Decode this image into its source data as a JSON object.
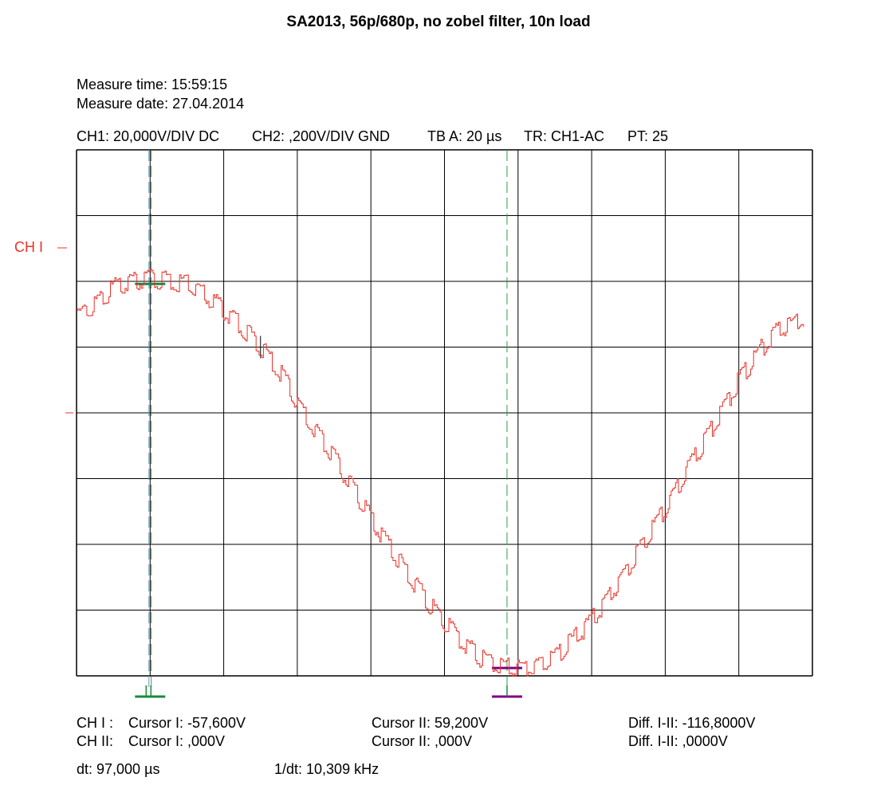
{
  "title": "SA2013, 56p/680p, no zobel filter, 10n load",
  "measure_time": "Measure time: 15:59:15",
  "measure_date": "Measure date: 27.04.2014",
  "settings": {
    "ch1": "CH1: 20,000V/DIV DC",
    "ch2": "CH2: ,200V/DIV GND",
    "timebase": "TB A: 20 µs",
    "trigger": "TR: CH1-AC",
    "pt": "PT: 25"
  },
  "ch1_marker": "CH I",
  "footer": {
    "ch1_label": "CH I :",
    "ch1_cursor1": "Cursor I: -57,600V",
    "ch1_cursor2": "Cursor II: 59,200V",
    "ch1_diff": "Diff. I-II: -116,8000V",
    "ch2_label": "CH II:",
    "ch2_cursor1": "Cursor I: ,000V",
    "ch2_cursor2": "Cursor II: ,000V",
    "ch2_diff": "Diff. I-II: ,0000V",
    "dt": "dt: 97,000 µs",
    "inv_dt": "1/dt: 10,309 kHz"
  },
  "colors": {
    "trace": "#e8332a",
    "grid": "#000000",
    "cursor1": "#1a8a3a",
    "cursor2": "#800080",
    "cursor_v1": "#4f9fb8",
    "cursor_v2": "#2e9e3e"
  },
  "chart_data": {
    "type": "line",
    "grid": true,
    "xlim": [
      0,
      200
    ],
    "ylim": [
      -60,
      100
    ],
    "x_units": "µs",
    "y_units": "V",
    "series": [
      {
        "x": [
          0,
          5,
          10,
          15,
          20,
          25,
          30,
          35,
          40,
          45,
          50,
          55,
          60,
          65,
          70,
          75,
          80,
          85,
          90,
          95,
          100,
          105,
          110,
          115,
          120,
          125,
          130,
          135,
          140,
          145,
          150,
          155,
          160,
          165,
          170,
          175,
          180,
          185,
          190,
          195,
          198
        ],
        "y": [
          49,
          53,
          58,
          60,
          61,
          60,
          59,
          56,
          51,
          46,
          40,
          33,
          23,
          14,
          6,
          -3,
          -12,
          -21,
          -29,
          -37,
          -44,
          -50,
          -55,
          -57,
          -58,
          -57,
          -54,
          -49,
          -43,
          -35,
          -27,
          -18,
          -9,
          1,
          10,
          20,
          30,
          38,
          45,
          47,
          49
        ]
      }
    ],
    "cursors": {
      "t1": 20,
      "t2": 117,
      "v1": -57.6,
      "v2": 59.2
    }
  }
}
